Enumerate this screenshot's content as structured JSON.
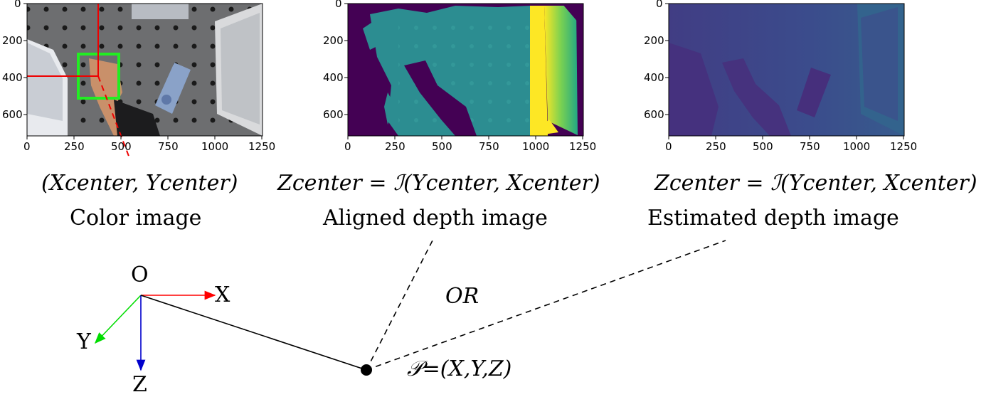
{
  "panels": [
    {
      "formula": "(Xcenter, Ycenter)",
      "caption": "Color image",
      "xticks": [
        "0",
        "250",
        "500",
        "750",
        "1000",
        "1250"
      ],
      "yticks": [
        "0",
        "200",
        "400",
        "600"
      ]
    },
    {
      "formula": "Zcenter = ℐ(Ycenter, Xcenter)",
      "caption": "Aligned depth image",
      "xticks": [
        "0",
        "250",
        "500",
        "750",
        "1000",
        "1250"
      ],
      "yticks": [
        "0",
        "200",
        "400",
        "600"
      ]
    },
    {
      "formula": "Zcenter = ℐ(Ycenter, Xcenter)",
      "caption": "Estimated depth image",
      "xticks": [
        "0",
        "250",
        "500",
        "750",
        "1000",
        "1250"
      ],
      "yticks": [
        "0",
        "200",
        "400",
        "600"
      ]
    }
  ],
  "frame": {
    "origin": "O",
    "x": "X",
    "y": "Y",
    "z": "Z",
    "x_color": "#ff0000",
    "y_color": "#00dd00",
    "z_color": "#0000cc"
  },
  "or_label": "OR",
  "point_label": "𝒫=(X,Y,Z)"
}
